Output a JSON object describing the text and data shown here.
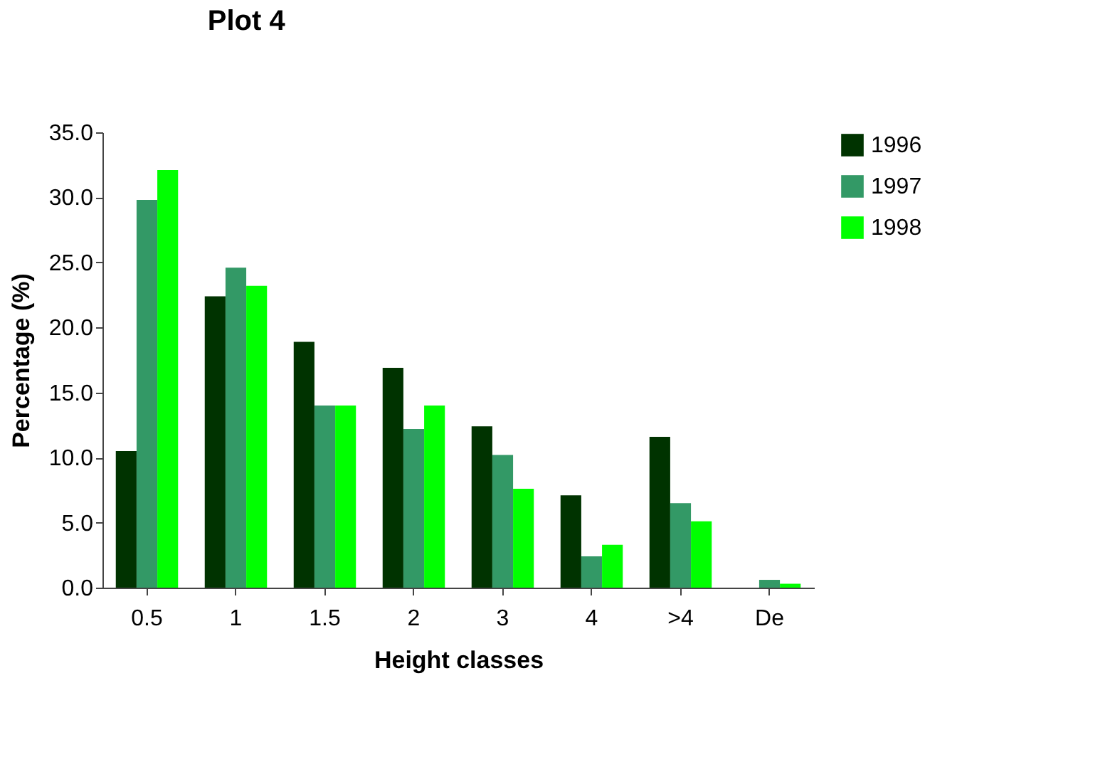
{
  "chart_data": {
    "type": "bar",
    "title": "Plot 4",
    "xlabel": "Height classes",
    "ylabel": "Percentage (%)",
    "categories": [
      "0.5",
      "1",
      "1.5",
      "2",
      "3",
      "4",
      ">4",
      "De"
    ],
    "series": [
      {
        "name": "1996",
        "color": "#003300",
        "values": [
          10.5,
          22.4,
          18.9,
          16.9,
          12.4,
          7.1,
          11.6,
          0
        ]
      },
      {
        "name": "1997",
        "color": "#339966",
        "values": [
          29.8,
          24.6,
          14.0,
          12.2,
          10.2,
          2.4,
          6.5,
          0.6
        ]
      },
      {
        "name": "1998",
        "color": "#00ff00",
        "values": [
          32.1,
          23.2,
          14.0,
          14.0,
          7.6,
          3.3,
          5.1,
          0.3
        ]
      }
    ],
    "ylim": [
      0,
      35
    ],
    "yticks": [
      {
        "value": 0,
        "label": "0.0"
      },
      {
        "value": 5,
        "label": "5.0"
      },
      {
        "value": 10,
        "label": "10.0"
      },
      {
        "value": 15,
        "label": "15.0"
      },
      {
        "value": 20,
        "label": "20.0"
      },
      {
        "value": 25,
        "label": "25.0"
      },
      {
        "value": 30,
        "label": "30.0"
      },
      {
        "value": 35,
        "label": "35.0"
      }
    ],
    "grid": false,
    "legend": "right"
  }
}
